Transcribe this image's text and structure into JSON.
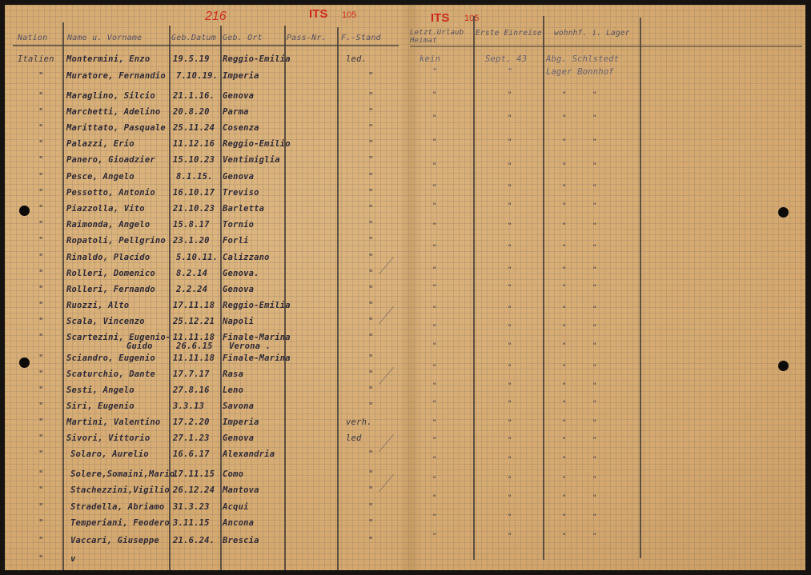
{
  "stamps": {
    "page_number": "216",
    "its_left": "ITS",
    "its_left_num": "105",
    "its_right": "ITS",
    "its_right_num": "105"
  },
  "headers": {
    "nation": "Nation",
    "name": "Name u. Vorname",
    "geb_datum": "Geb.Datum",
    "geb_ort": "Geb. Ort",
    "pass_nr": "Pass-Nr.",
    "f_stand": "F.-Stand",
    "letzt_urlaub": "Letzt.Urlaub",
    "letzt_urlaub_2": "Heimat",
    "erste_einreise": "Erste Einreise",
    "wohnhaft": "wohnhf. i. Lager"
  },
  "rows": [
    {
      "nation": "Italien",
      "name": "Montermini, Enzo",
      "date": "19.5.19",
      "place": "Reggio-Emilia",
      "fstand": "led."
    },
    {
      "nation": "\"",
      "name": "Muratore, Fernandio",
      "date": "7.10.19.",
      "place": "Imperia",
      "fstand": "\""
    },
    {
      "nation": "\"",
      "name": "Maraglino, Silcio",
      "date": "21.1.16.",
      "place": "Genova",
      "fstand": "\""
    },
    {
      "nation": "\"",
      "name": "Marchetti, Adelino",
      "date": "20.8.20",
      "place": "Parma",
      "fstand": "\""
    },
    {
      "nation": "\"",
      "name": "Marittato, Pasquale",
      "date": "25.11.24",
      "place": "Cosenza",
      "fstand": "\""
    },
    {
      "nation": "\"",
      "name": "Palazzi, Erio",
      "date": "11.12.16",
      "place": "Reggio-Emilio",
      "fstand": "\""
    },
    {
      "nation": "\"",
      "name": "Panero, Gioadzier",
      "date": "15.10.23",
      "place": "Ventimiglia",
      "fstand": "\""
    },
    {
      "nation": "\"",
      "name": "Pesce, Angelo",
      "date": "8.1.15.",
      "place": "Genova",
      "fstand": "\""
    },
    {
      "nation": "\"",
      "name": "Pessotto, Antonio",
      "date": "16.10.17",
      "place": "Treviso",
      "fstand": "\""
    },
    {
      "nation": "\"",
      "name": "Piazzolla, Vito",
      "date": "21.10.23",
      "place": "Barletta",
      "fstand": "\""
    },
    {
      "nation": "\"",
      "name": "Raimonda, Angelo",
      "date": "15.8.17",
      "place": "Tornio",
      "fstand": "\""
    },
    {
      "nation": "\"",
      "name": "Ropatoli, Pellgrino",
      "date": "23.1.20",
      "place": "Forli",
      "fstand": "\""
    },
    {
      "nation": "\"",
      "name": "Rinaldo, Placido",
      "date": "5.10.11.",
      "place": "Calizzano",
      "fstand": "\""
    },
    {
      "nation": "\"",
      "name": "Rolleri, Domenico",
      "date": "8.2.14",
      "place": "Genova.",
      "fstand": "\""
    },
    {
      "nation": "\"",
      "name": "Rolleri, Fernando",
      "date": "2.2.24",
      "place": "Genova",
      "fstand": "\""
    },
    {
      "nation": "\"",
      "name": "Ruozzi, Alto",
      "date": "17.11.18",
      "place": "Reggio-Emilia",
      "fstand": "\""
    },
    {
      "nation": "\"",
      "name": "Scala, Vincenzo",
      "date": "25.12.21",
      "place": "Napoli",
      "fstand": "\""
    },
    {
      "nation": "\"",
      "name": "Scartezini, Eugenio-",
      "name2": "Guido",
      "date": "11.11.18",
      "date2": "26.6.15",
      "place": "Finale-Marina",
      "place2": "Verona .",
      "fstand": "\""
    },
    {
      "nation": "\"",
      "name": "Sciandro, Eugenio",
      "date": "11.11.18",
      "place": "Finale-Marina",
      "fstand": "\""
    },
    {
      "nation": "\"",
      "name": "Scaturchio, Dante",
      "date": "17.7.17",
      "place": "Rasa",
      "fstand": "\""
    },
    {
      "nation": "\"",
      "name": "Sesti, Angelo",
      "date": "27.8.16",
      "place": "Leno",
      "fstand": "\""
    },
    {
      "nation": "\"",
      "name": "Siri, Eugenio",
      "date": "3.3.13",
      "place": "Savona",
      "fstand": "\""
    },
    {
      "nation": "\"",
      "name": "Martini, Valentino",
      "date": "17.2.20",
      "place": "Imperia",
      "fstand": "verh."
    },
    {
      "nation": "\"",
      "name": "Sivori, Vittorio",
      "date": "27.1.23",
      "place": "Genova",
      "fstand": "led"
    },
    {
      "nation": "\"",
      "name": "Solaro, Aurelio",
      "date": "16.6.17",
      "place": "Alexandria",
      "fstand": "\""
    },
    {
      "nation": "\"",
      "name": "Solere,Somaini,Mario",
      "date": "17.11.15",
      "place": "Como",
      "fstand": "\""
    },
    {
      "nation": "\"",
      "name": "Stachezzini,Vigilio",
      "date": "26.12.24",
      "place": "Mantova",
      "fstand": "\""
    },
    {
      "nation": "\"",
      "name": "Stradella, Abriamo",
      "date": "31.3.23",
      "place": "Acqui",
      "fstand": "\""
    },
    {
      "nation": "\"",
      "name": "Temperiani, Feodero",
      "date": "3.11.15",
      "place": "Ancona",
      "fstand": "\""
    },
    {
      "nation": "\"",
      "name": "Vaccari, Giuseppe",
      "date": "21.6.24.",
      "place": "Brescia",
      "fstand": "\""
    },
    {
      "nation": "\"",
      "name": "v",
      "date": "",
      "place": "",
      "fstand": ""
    }
  ],
  "right_first": {
    "urlaub": "kein",
    "einreise": "Sept. 43",
    "lager": "Abg. Schlstedt"
  },
  "right_second": {
    "urlaub": "\"",
    "einreise": "\"",
    "lager": "Lager Bonnhof"
  },
  "ditto": "\""
}
